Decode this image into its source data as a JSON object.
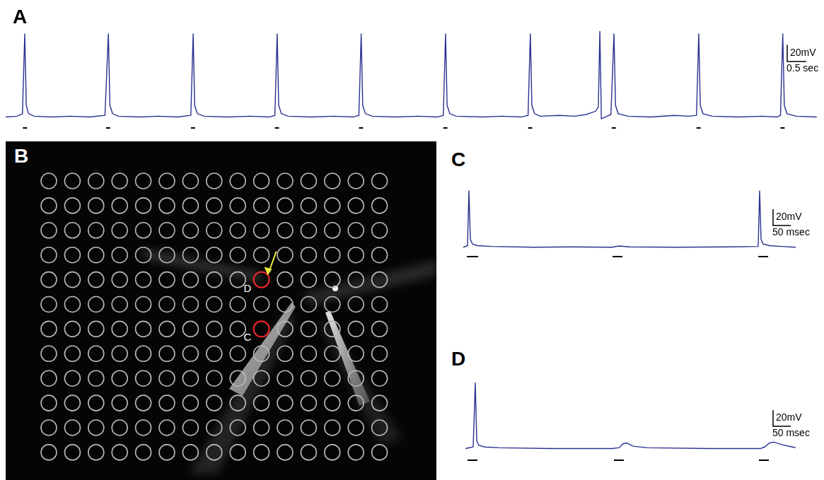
{
  "chart_data": [
    {
      "panel": "A",
      "type": "line",
      "color": "#29318f",
      "tick_labels": false,
      "xlim": [
        0,
        21.3
      ],
      "ylim": [
        -19,
        108
      ],
      "x": [
        0,
        0.3,
        0.44,
        0.5,
        0.54,
        0.6,
        0.75,
        1.2,
        1.7,
        2.2,
        2.6,
        2.69,
        2.73,
        2.8,
        2.95,
        3.5,
        4.0,
        4.5,
        4.85,
        4.91,
        4.95,
        5.02,
        5.2,
        5.8,
        6.4,
        6.9,
        7.05,
        7.11,
        7.15,
        7.22,
        7.4,
        8.0,
        8.6,
        9.1,
        9.25,
        9.31,
        9.35,
        9.42,
        9.6,
        10.2,
        10.8,
        11.3,
        11.46,
        11.52,
        11.56,
        11.63,
        11.8,
        12.5,
        13.0,
        13.5,
        13.68,
        13.74,
        13.78,
        13.85,
        14.0,
        14.5,
        14.9,
        15.2,
        15.45,
        15.52,
        15.56,
        15.6,
        15.7,
        15.85,
        15.93,
        15.97,
        16.04,
        16.3,
        16.9,
        17.5,
        17.9,
        18.09,
        18.15,
        18.19,
        18.26,
        18.5,
        19.2,
        19.8,
        20.2,
        20.29,
        20.35,
        20.39,
        20.46,
        20.7,
        21.24
      ],
      "values": [
        0,
        1,
        4,
        100,
        14,
        4,
        1,
        0,
        1,
        0,
        2,
        100,
        14,
        4,
        1,
        0,
        1,
        0,
        2,
        100,
        14,
        4,
        1,
        0,
        1,
        0,
        2,
        100,
        14,
        4,
        1,
        0,
        1,
        0,
        2,
        100,
        14,
        4,
        1,
        0,
        1,
        0,
        2,
        100,
        14,
        4,
        1,
        0,
        1,
        0,
        2,
        100,
        14,
        4,
        1,
        2,
        1,
        3,
        7,
        12,
        103,
        -2,
        0,
        3,
        100,
        14,
        4,
        1,
        0,
        2,
        1,
        2,
        100,
        14,
        4,
        1,
        0,
        1,
        0,
        2,
        100,
        14,
        4,
        1,
        0
      ],
      "stimuli": [
        [
          0.45,
          0.56
        ],
        [
          2.63,
          2.74
        ],
        [
          4.85,
          4.96
        ],
        [
          7.05,
          7.16
        ],
        [
          9.25,
          9.36
        ],
        [
          11.46,
          11.57
        ],
        [
          13.68,
          13.79
        ],
        [
          15.87,
          15.98
        ],
        [
          18.09,
          18.2
        ],
        [
          20.29,
          20.4
        ]
      ],
      "scale_bar": {
        "y": 20,
        "y_label": "20mV",
        "x": 0.5,
        "x_label": "0.5 sec"
      }
    },
    {
      "panel": "C",
      "type": "line",
      "color": "#29318f",
      "tick_labels": false,
      "xlim": [
        -10,
        1010
      ],
      "ylim": [
        -22,
        87
      ],
      "x": [
        0,
        12,
        16,
        20,
        26,
        40,
        80,
        200,
        300,
        420,
        440,
        470,
        600,
        750,
        834,
        838,
        842,
        848,
        866,
        900,
        940
      ],
      "values": [
        0,
        2,
        70,
        10,
        4,
        2,
        1,
        0,
        0.5,
        0,
        1.5,
        0.5,
        0,
        0.5,
        1,
        70,
        10,
        4,
        2,
        1,
        0
      ],
      "stimuli": [
        [
          10,
          42
        ],
        [
          422,
          450
        ],
        [
          834,
          862
        ]
      ],
      "scale_bar": {
        "y": 20,
        "y_label": "20mV",
        "x": 50,
        "x_label": "50 msec"
      }
    },
    {
      "panel": "D",
      "type": "line",
      "color": "#29318f",
      "tick_labels": false,
      "xlim": [
        -10,
        1010
      ],
      "ylim": [
        -18,
        92
      ],
      "x": [
        6,
        28,
        34,
        38,
        44,
        60,
        100,
        250,
        420,
        440,
        452,
        462,
        480,
        520,
        700,
        840,
        852,
        866,
        878,
        900,
        930,
        940
      ],
      "values": [
        0,
        2,
        82,
        10,
        4,
        2,
        1,
        0,
        0,
        1,
        6,
        7,
        3,
        1,
        0,
        0,
        2,
        7,
        8,
        5,
        2,
        1
      ],
      "stimuli": [
        [
          12,
          40
        ],
        [
          426,
          454
        ],
        [
          836,
          864
        ]
      ],
      "scale_bar": {
        "y": 20,
        "y_label": "20mV",
        "x": 50,
        "x_label": "50 msec"
      }
    }
  ],
  "image_panel": {
    "panel": "B",
    "rows": 12,
    "columns": 15,
    "highlighted": [
      {
        "label": "D",
        "row": 4,
        "column": 9
      },
      {
        "label": "C",
        "row": 6,
        "column": 9
      }
    ]
  }
}
